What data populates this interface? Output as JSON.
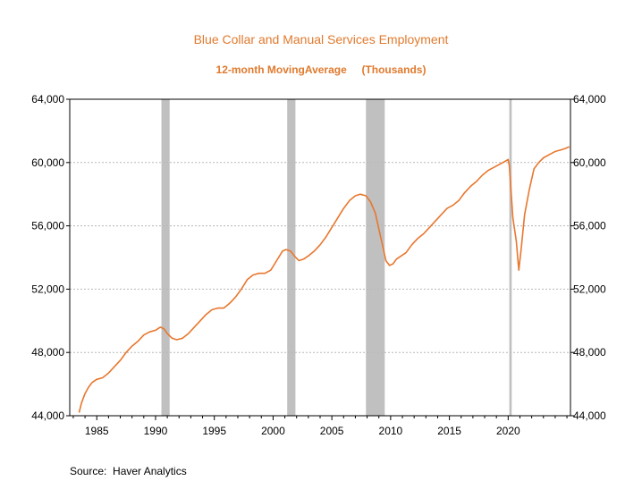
{
  "chart_data": {
    "type": "line",
    "title": "Blue Collar and Manual Services Employment",
    "subtitle": "12-month MovingAverage     (Thousands)",
    "source": "Source:  Haver Analytics",
    "xlabel": "",
    "ylabel": "",
    "xlim": [
      1982.7,
      2025.3
    ],
    "ylim": [
      44000,
      64000
    ],
    "y_ticks": [
      44000,
      48000,
      52000,
      56000,
      60000,
      64000
    ],
    "y_tick_labels": [
      "44,000",
      "48,000",
      "52,000",
      "56,000",
      "60,000",
      "64,000"
    ],
    "x_ticks": [
      1985,
      1990,
      1995,
      2000,
      2005,
      2010,
      2015,
      2020
    ],
    "x_tick_labels": [
      "1985",
      "1990",
      "1995",
      "2000",
      "2005",
      "2010",
      "2015",
      "2020"
    ],
    "grid": true,
    "dual_y_axis": true,
    "recessions": [
      [
        1990.5,
        1991.2
      ],
      [
        2001.2,
        2001.9
      ],
      [
        2007.9,
        2009.5
      ],
      [
        2020.1,
        2020.3
      ]
    ],
    "colors": {
      "line": "#e8772e",
      "recession": "#c0c0c0",
      "title": "#e07a2e",
      "grid": "#b8b8b8"
    },
    "series": [
      {
        "x": [
          1983.5,
          1983.7,
          1984.0,
          1984.3,
          1984.6,
          1985.0,
          1985.5,
          1986.0,
          1986.5,
          1987.0,
          1987.5,
          1988.0,
          1988.5,
          1989.0,
          1989.5,
          1990.0,
          1990.4,
          1990.7,
          1991.0,
          1991.4,
          1991.8,
          1992.3,
          1992.8,
          1993.3,
          1993.8,
          1994.3,
          1994.8,
          1995.3,
          1995.8,
          1996.3,
          1996.8,
          1997.3,
          1997.8,
          1998.3,
          1998.8,
          1999.3,
          1999.8,
          2000.3,
          2000.8,
          2001.1,
          2001.5,
          2001.8,
          2002.2,
          2002.6,
          2003.0,
          2003.5,
          2004.0,
          2004.5,
          2005.0,
          2005.5,
          2006.0,
          2006.5,
          2007.0,
          2007.4,
          2007.9,
          2008.3,
          2008.7,
          2009.0,
          2009.3,
          2009.6,
          2009.9,
          2010.2,
          2010.5,
          2010.9,
          2011.3,
          2011.8,
          2012.3,
          2012.8,
          2013.3,
          2013.8,
          2014.3,
          2014.8,
          2015.3,
          2015.8,
          2016.3,
          2016.8,
          2017.3,
          2017.8,
          2018.3,
          2018.8,
          2019.3,
          2019.8,
          2020.0,
          2020.1,
          2020.4,
          2020.7,
          2020.9,
          2021.1,
          2021.4,
          2021.8,
          2022.2,
          2022.6,
          2023.0,
          2023.5,
          2024.0,
          2024.5,
          2024.9,
          2025.2
        ],
        "values": [
          44200,
          44800,
          45400,
          45800,
          46100,
          46300,
          46400,
          46700,
          47100,
          47500,
          48000,
          48400,
          48700,
          49100,
          49300,
          49400,
          49600,
          49500,
          49200,
          48900,
          48800,
          48900,
          49200,
          49600,
          50000,
          50400,
          50700,
          50800,
          50800,
          51100,
          51500,
          52000,
          52600,
          52900,
          53000,
          53000,
          53200,
          53800,
          54400,
          54500,
          54400,
          54100,
          53800,
          53900,
          54100,
          54400,
          54800,
          55300,
          55900,
          56500,
          57100,
          57600,
          57900,
          58000,
          57900,
          57500,
          56800,
          55800,
          54800,
          53800,
          53500,
          53600,
          53900,
          54100,
          54300,
          54800,
          55200,
          55500,
          55900,
          56300,
          56700,
          57100,
          57300,
          57600,
          58100,
          58500,
          58800,
          59200,
          59500,
          59700,
          59900,
          60100,
          60200,
          59800,
          56500,
          55000,
          53200,
          54500,
          56700,
          58300,
          59600,
          60000,
          60300,
          60500,
          60700,
          60800,
          60900,
          61000
        ]
      }
    ]
  }
}
